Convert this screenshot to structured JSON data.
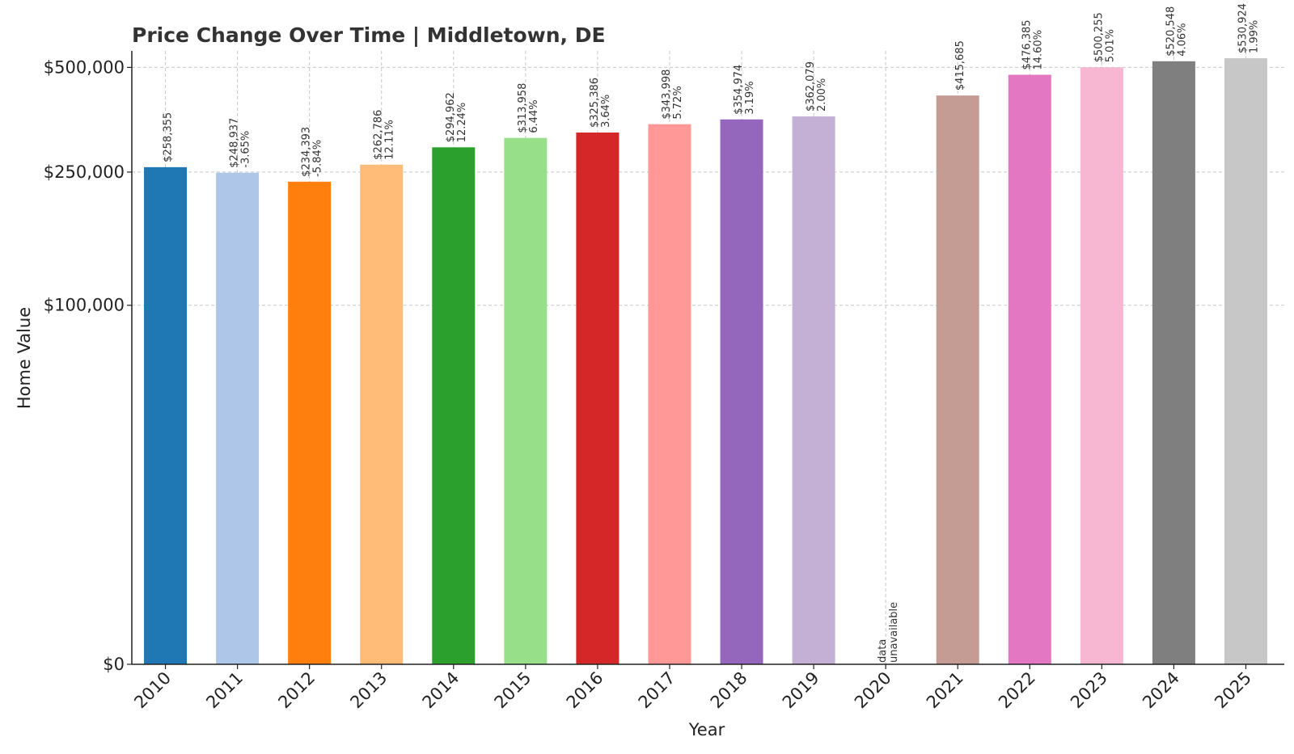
{
  "chart_data": {
    "type": "bar",
    "title": "Price Change Over Time | Middletown, DE",
    "xlabel": "Year",
    "ylabel": "Home Value",
    "categories": [
      "2010",
      "2011",
      "2012",
      "2013",
      "2014",
      "2015",
      "2016",
      "2017",
      "2018",
      "2019",
      "2020",
      "2021",
      "2022",
      "2023",
      "2024",
      "2025"
    ],
    "values": [
      258355,
      248937,
      234393,
      262786,
      294962,
      313958,
      325386,
      343998,
      354974,
      362079,
      null,
      415685,
      476385,
      500255,
      520548,
      530924
    ],
    "value_labels": [
      "$258,355",
      "$248,937",
      "$234,393",
      "$262,786",
      "$294,962",
      "$313,958",
      "$325,386",
      "$343,998",
      "$354,974",
      "$362,079",
      "data",
      "$415,685",
      "$476,385",
      "$500,255",
      "$520,548",
      "$530,924"
    ],
    "change_labels": [
      "",
      "-3.65%",
      "-5.84%",
      "12.11%",
      "12.24%",
      "6.44%",
      "3.64%",
      "5.72%",
      "3.19%",
      "2.00%",
      "unavailable",
      "",
      "14.60%",
      "5.01%",
      "4.06%",
      "1.99%"
    ],
    "colors": [
      "#1f77b4",
      "#aec7e8",
      "#ff7f0e",
      "#ffbb78",
      "#2ca02c",
      "#98df8a",
      "#d62728",
      "#ff9896",
      "#9467bd",
      "#c5b0d5",
      "#8c564b",
      "#c49c94",
      "#e377c2",
      "#f7b6d2",
      "#7f7f7f",
      "#c7c7c7"
    ],
    "y_ticks": [
      0,
      100000,
      250000,
      500000
    ],
    "y_tick_labels": [
      "$0",
      "$100,000",
      "$250,000",
      "$500,000"
    ],
    "y_scale": "symlog",
    "ylim": [
      0,
      557000
    ],
    "grid": true,
    "legend": "none"
  }
}
